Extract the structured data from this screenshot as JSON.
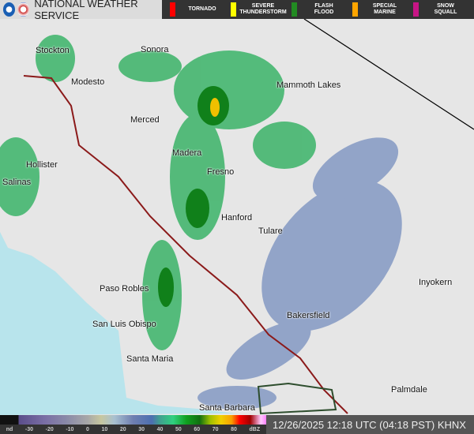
{
  "header": {
    "title": "NATIONAL WEATHER SERVICE",
    "logos": [
      "noaa-logo",
      "nws-logo"
    ]
  },
  "warnings": [
    {
      "label": "TORNADO",
      "color": "#ff0000"
    },
    {
      "label": "SEVERE\nTHUNDERSTORM",
      "color": "#ffff00"
    },
    {
      "label": "FLASH\nFLOOD",
      "color": "#228b22"
    },
    {
      "label": "SPECIAL\nMARINE",
      "color": "#ffa500"
    },
    {
      "label": "SNOW\nSQUALL",
      "color": "#c71585"
    }
  ],
  "cities": [
    {
      "name": "Stockton"
    },
    {
      "name": "Sonora"
    },
    {
      "name": "Modesto"
    },
    {
      "name": "Mammoth Lakes"
    },
    {
      "name": "Merced"
    },
    {
      "name": "Madera"
    },
    {
      "name": "Hollister"
    },
    {
      "name": "Fresno"
    },
    {
      "name": "Salinas"
    },
    {
      "name": "Hanford"
    },
    {
      "name": "Tulare"
    },
    {
      "name": "Inyokern"
    },
    {
      "name": "Paso Robles"
    },
    {
      "name": "San Luis Obispo"
    },
    {
      "name": "Bakersfield"
    },
    {
      "name": "Santa Maria"
    },
    {
      "name": "Palmdale"
    },
    {
      "name": "Santa Barbara"
    }
  ],
  "legend": {
    "ticks": [
      "nd",
      "-30",
      "-20",
      "-10",
      "0",
      "10",
      "20",
      "30",
      "40",
      "50",
      "60",
      "70",
      "80",
      "dBZ"
    ]
  },
  "timestamp": "12/26/2025 12:18 UTC (04:18 PST) KHNX",
  "colors": {
    "land": "#e6e6e6",
    "ocean": "#b8e4ec",
    "highway": "#8b1a1a"
  }
}
